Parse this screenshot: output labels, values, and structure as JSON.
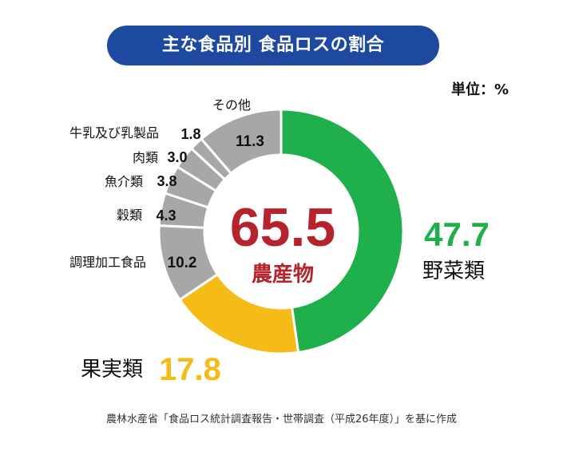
{
  "title": "主な食品別 食品ロスの割合",
  "unit": "単位：%",
  "source": "農林水産省「食品ロス統計調査報告・世帯調査（平成26年度）」を基に作成",
  "center": {
    "value": "65.5",
    "label": "農産物"
  },
  "colors": {
    "vegetables": "#1fb04c",
    "fruits": "#f5bb17",
    "others": "#a7a7a7",
    "center": "#b5232d",
    "title_bg": "#1d4aa0"
  },
  "chart_data": {
    "type": "pie",
    "title": "主な食品別 食品ロスの割合",
    "unit": "単位：%",
    "center_total": {
      "label": "農産物",
      "value": 65.5
    },
    "slices": [
      {
        "label": "野菜類",
        "value": 47.7
      },
      {
        "label": "果実類",
        "value": 17.8
      },
      {
        "label": "調理加工食品",
        "value": 10.2
      },
      {
        "label": "穀類",
        "value": 4.3
      },
      {
        "label": "魚介類",
        "value": 3.8
      },
      {
        "label": "肉類",
        "value": 3.0
      },
      {
        "label": "牛乳及び乳製品",
        "value": 1.8
      },
      {
        "label": "その他",
        "value": 11.3
      }
    ]
  }
}
